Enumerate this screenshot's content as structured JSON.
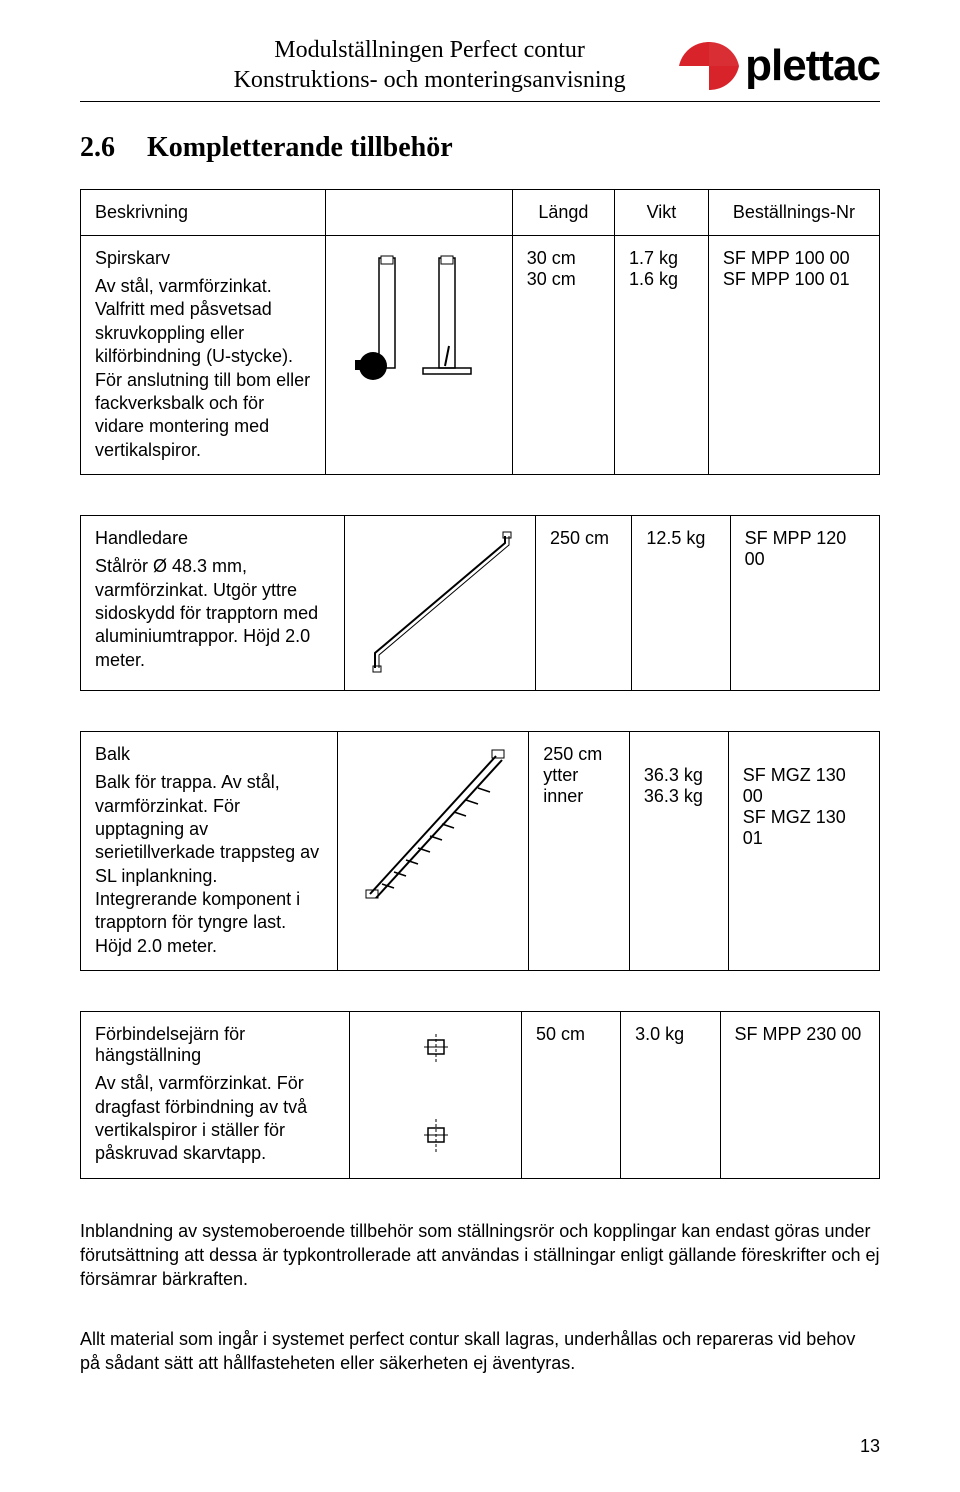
{
  "header": {
    "line1": "Modulställningen Perfect contur",
    "line2": "Konstruktions- och monteringsanvisning",
    "brand": "plettac",
    "logo_color": "#d8232a"
  },
  "section": {
    "number": "2.6",
    "title": "Kompletterande tillbehör"
  },
  "columns": {
    "description": "Beskrivning",
    "length": "Längd",
    "weight": "Vikt",
    "order": "Beställnings-Nr"
  },
  "items": [
    {
      "title": "Spirskarv",
      "body": "Av stål, varmförzinkat. Valfritt med påsvetsad skruvkoppling eller kilförbindning (U-stycke). För anslutning till bom eller fackverksbalk och för vidare montering med vertikalspiror.",
      "length": "30 cm\n30 cm",
      "weight": "1.7 kg\n1.6 kg",
      "order": "SF MPP 100 00\nSF MPP 100 01"
    },
    {
      "title": "Handledare",
      "body": "Stålrör Ø 48.3 mm, varmförzinkat. Utgör yttre sidoskydd för trapptorn med aluminiumtrappor. Höjd 2.0 meter.",
      "length": "250 cm",
      "weight": "12.5 kg",
      "order": "SF MPP 120 00"
    },
    {
      "title": "Balk",
      "body": "Balk för trappa. Av stål, varmförzinkat. För upptagning av serietillverkade trappsteg av SL inplankning. Integrerande komponent i trapptorn för tyngre last. Höjd 2.0 meter.",
      "length": "250 cm\nytter\ninner",
      "length_align": "right",
      "weight": "\n36.3 kg\n36.3 kg",
      "order": "\nSF MGZ 130 00\nSF MGZ 130 01"
    },
    {
      "title": "Förbindelsejärn för hängställning",
      "body": "Av stål, varmförzinkat. För dragfast förbindning av två vertikalspiror i ställer för påskruvad skarvtapp.",
      "length": "50 cm",
      "weight": "3.0 kg",
      "order": "SF MPP 230 00"
    }
  ],
  "footer": {
    "para1": "Inblandning av systemoberoende tillbehör som ställningsrör och kopplingar kan endast göras under förutsättning att dessa är typkontrollerade att användas i ställningar enligt gällande föreskrifter och ej försämrar bärkraften.",
    "para2": "Allt material som ingår i systemet perfect contur skall lagras, underhållas och repareras vid behov på sådant sätt att hållfasteheten eller säkerheten ej äventyras.",
    "page": "13"
  }
}
